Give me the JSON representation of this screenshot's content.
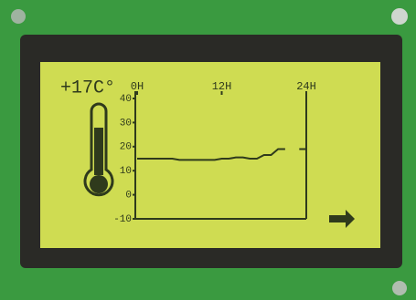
{
  "chart_data": {
    "type": "line",
    "current": "+17C°",
    "x": [
      0,
      1,
      2,
      3,
      4,
      5,
      6,
      7,
      8,
      9,
      10,
      11,
      12,
      13,
      14,
      15,
      16,
      17,
      18,
      19,
      20,
      21,
      22,
      23,
      24
    ],
    "series": [
      {
        "color": "#2f3a1c",
        "values": [
          15,
          15,
          15,
          15,
          15,
          15,
          14.5,
          14.5,
          14.5,
          14.5,
          14.5,
          14.5,
          15,
          15,
          15.5,
          15.5,
          15,
          15,
          16.5,
          16.5,
          19,
          19,
          null,
          19,
          19
        ]
      }
    ],
    "xlim": [
      0,
      24
    ],
    "xticks": [
      {
        "value": 0,
        "label": "0H"
      },
      {
        "value": 12,
        "label": "12H"
      },
      {
        "value": 24,
        "label": "24H"
      }
    ],
    "ylim": [
      -10,
      40
    ],
    "yticks": [
      40,
      30,
      20,
      10,
      0,
      -10
    ]
  }
}
